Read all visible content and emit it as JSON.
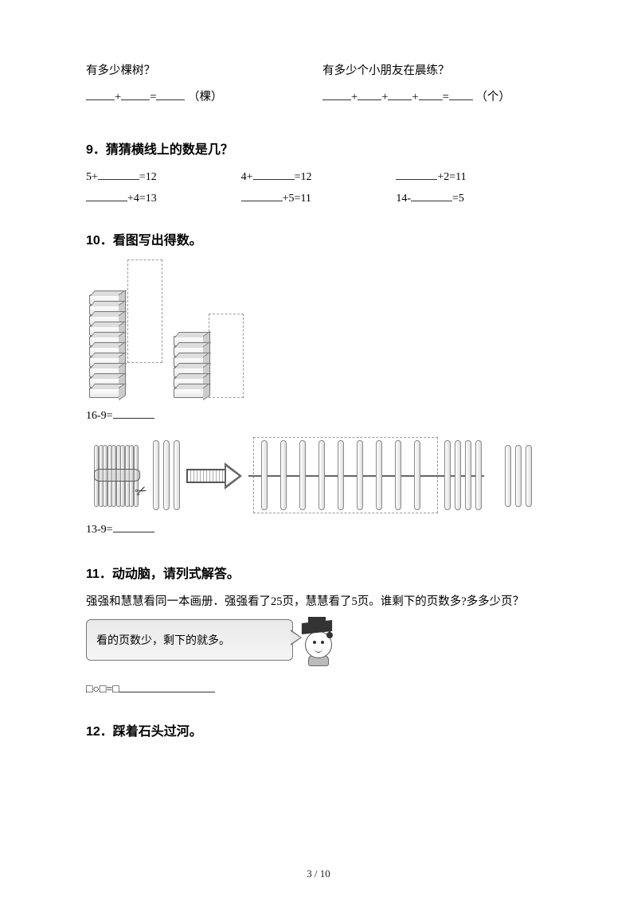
{
  "top": {
    "left_q": "有多少棵树？",
    "left_unit": "（棵）",
    "right_q": "有多少个小朋友在晨练？",
    "right_unit": "（个）"
  },
  "q9": {
    "heading": "9．猜猜横线上的数是几？",
    "row1": {
      "a": "5+",
      "a_tail": "=12",
      "b": "4+",
      "b_tail": "=12",
      "c_tail": "+2=11"
    },
    "row2": {
      "a_tail": "+4=13",
      "b_tail": "+5=11",
      "c": "14-",
      "c_tail": "=5"
    }
  },
  "q10": {
    "heading": "10．看图写出得数。",
    "eq1": "16-9=",
    "eq2": "13-9="
  },
  "q11": {
    "heading": "11．动动脑，请列式解答。",
    "body": "强强和慧慧看同一本画册．强强看了25页，慧慧看了5页。谁剩下的页数多?多多少页？",
    "tip": "看的页数少，剩下的就多。",
    "shape_eq": "□○□=□"
  },
  "q12": {
    "heading": "12．踩着石头过河。"
  },
  "footer": "3 / 10",
  "style": {
    "page_bg": "#ffffff",
    "text_color": "#000000",
    "heading_fontsize_pt": 12,
    "body_fontsize_pt": 11,
    "blank_border_color": "#333333",
    "blocks": {
      "left_stack_count": 10,
      "right_stack_count": 6,
      "cube_w": 38,
      "cube_h": 13,
      "dash_color": "#999999"
    },
    "sticks": {
      "bundle_count": 10,
      "loose_before_arrow": 3,
      "dashed_group_count": 9,
      "after_dashed_and_extra": 4,
      "far_right_group": 3,
      "stick_w": 7.5
    }
  }
}
